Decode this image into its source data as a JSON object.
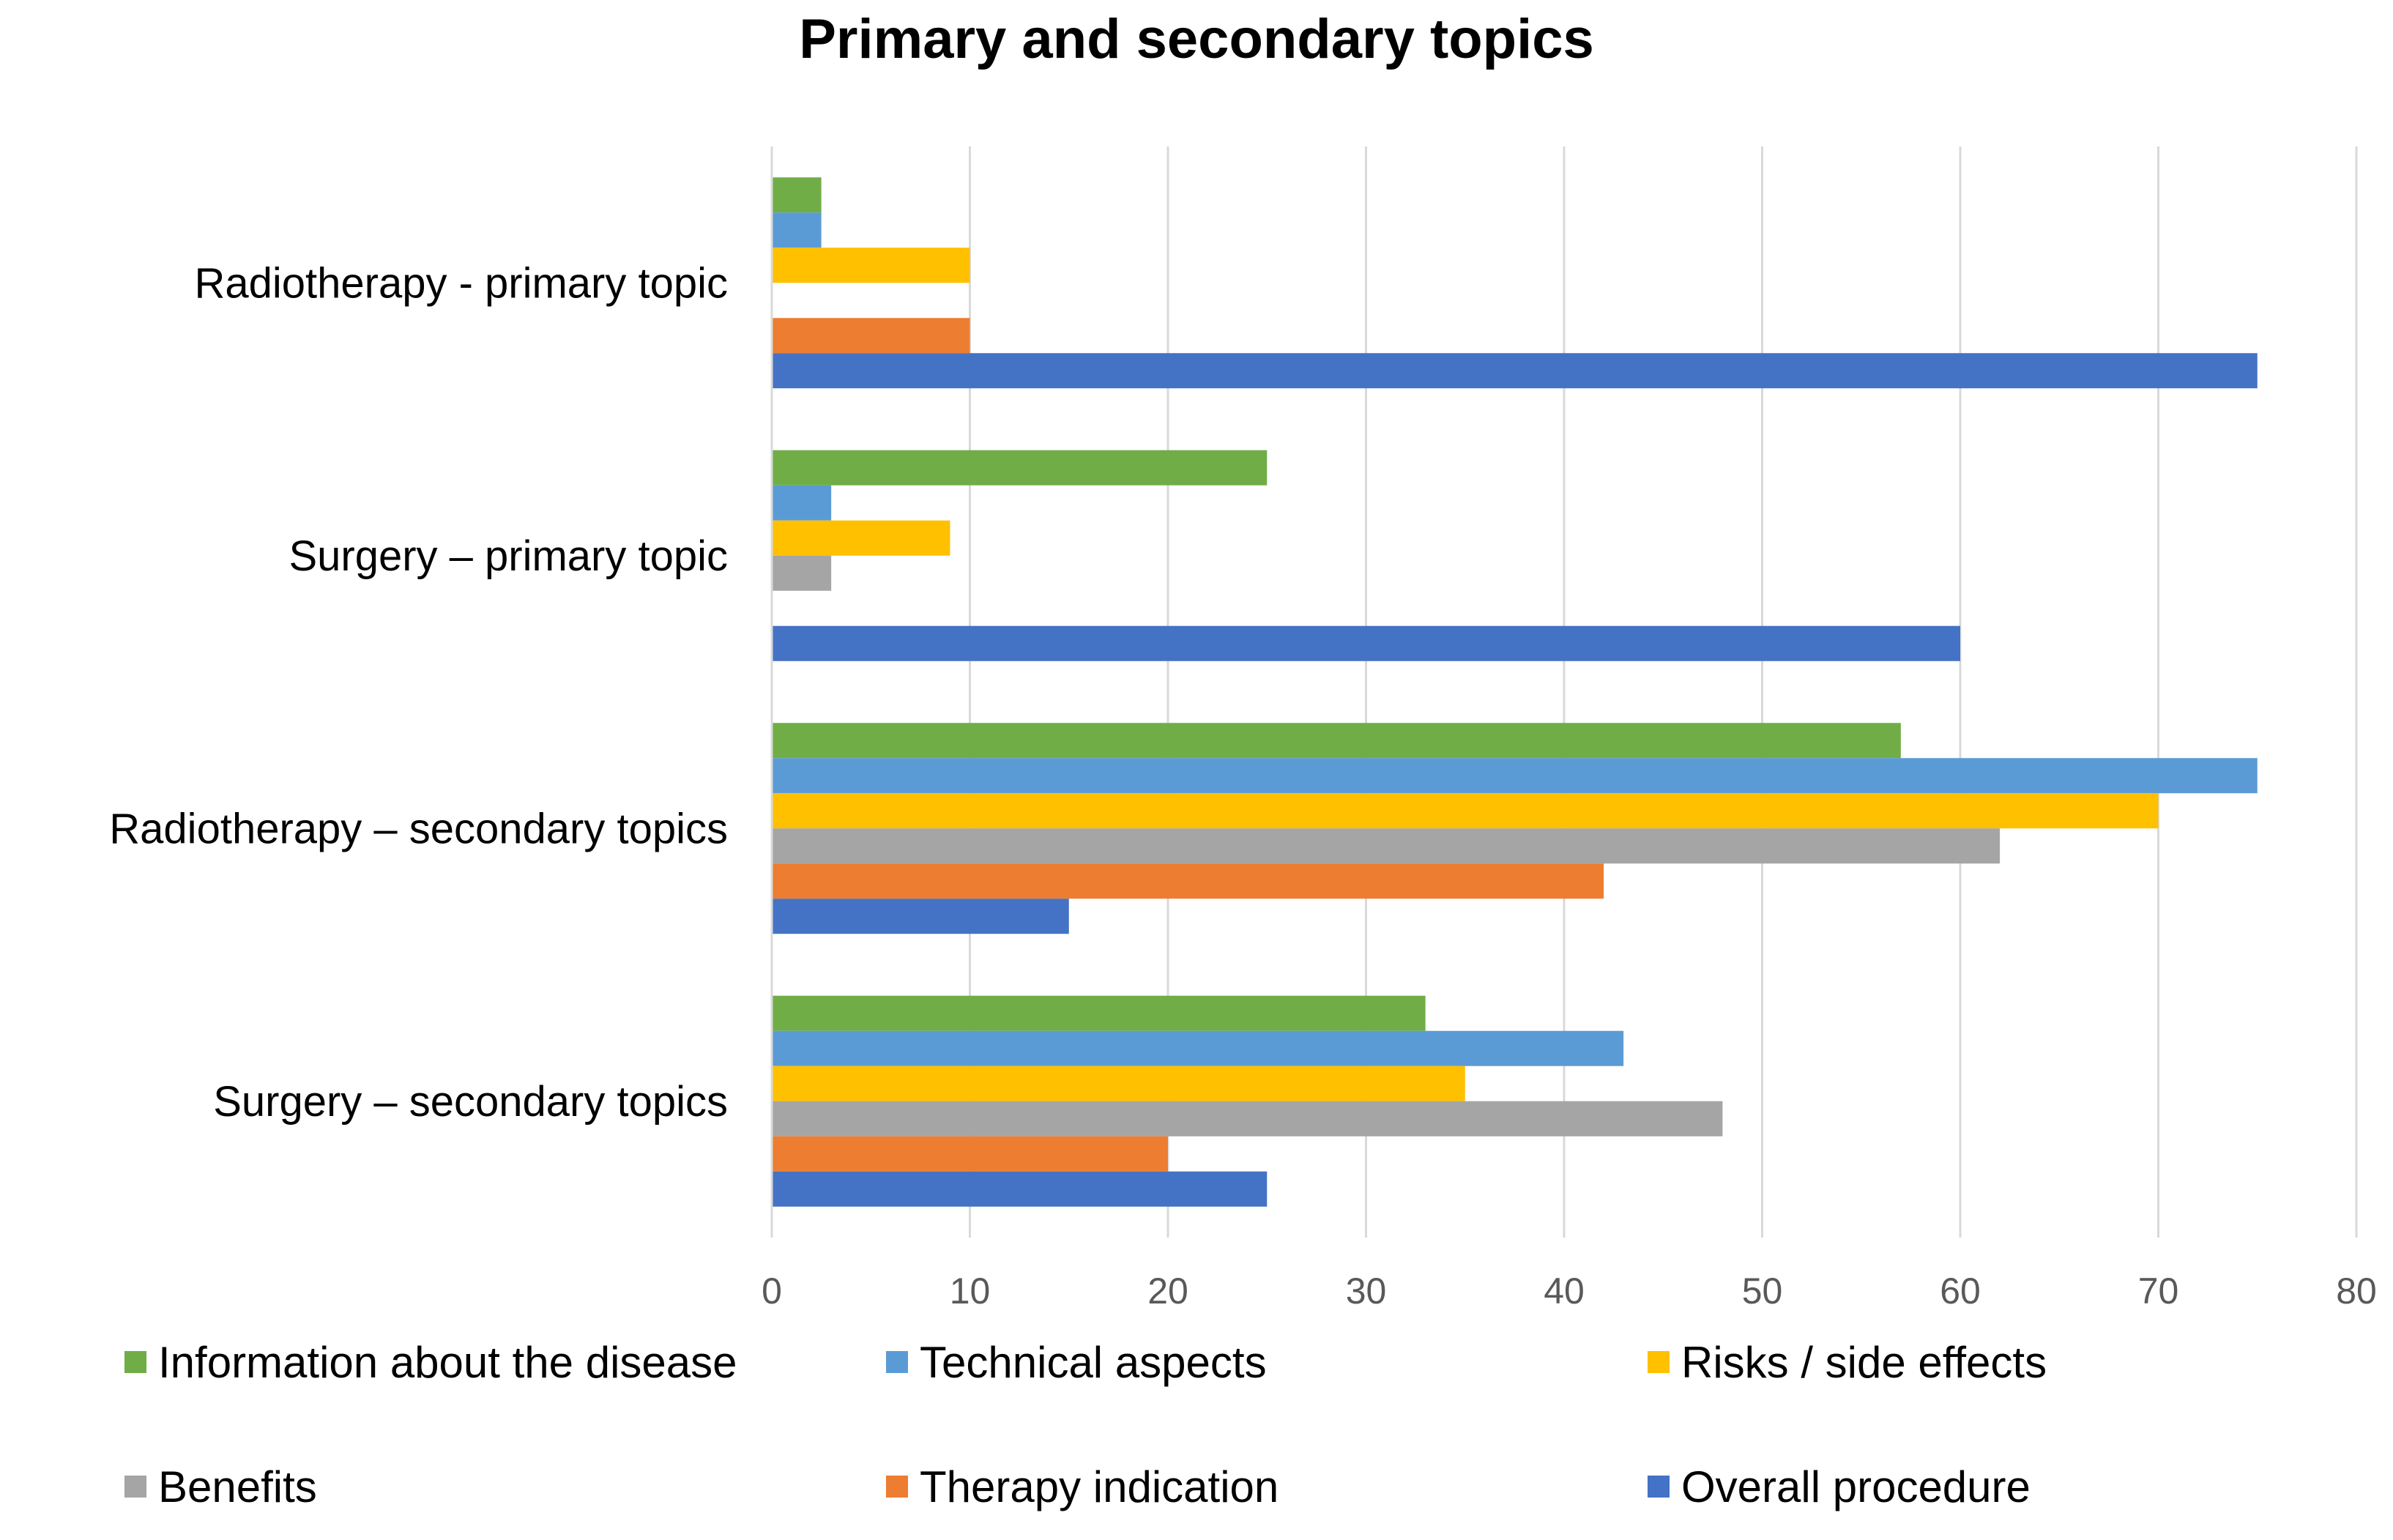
{
  "chart_data": {
    "type": "bar",
    "orientation": "horizontal",
    "title": "Primary and secondary topics",
    "xlabel": "",
    "ylabel": "",
    "xlim": [
      0,
      80
    ],
    "x_ticks": [
      "0",
      "10",
      "20",
      "30",
      "40",
      "50",
      "60",
      "70",
      "80"
    ],
    "grid": true,
    "legend_position": "bottom",
    "categories": [
      "Radiotherapy - primary topic",
      "Surgery – primary topic",
      "Radiotherapy – secondary topics",
      "Surgery – secondary topics"
    ],
    "series": [
      {
        "name": "Information about the disease",
        "color": "#70AD47",
        "values": [
          2.5,
          25,
          57,
          33
        ]
      },
      {
        "name": "Technical aspects",
        "color": "#5B9BD5",
        "values": [
          2.5,
          3,
          75,
          43
        ]
      },
      {
        "name": "Risks / side effects",
        "color": "#FFC000",
        "values": [
          10,
          9,
          70,
          35
        ]
      },
      {
        "name": "Benefits",
        "color": "#A5A5A5",
        "values": [
          0,
          3,
          62,
          48
        ]
      },
      {
        "name": "Therapy indication",
        "color": "#ED7D31",
        "values": [
          10,
          0,
          42,
          20
        ]
      },
      {
        "name": "Overall procedure",
        "color": "#4472C4",
        "values": [
          75,
          60,
          15,
          25
        ]
      }
    ]
  }
}
